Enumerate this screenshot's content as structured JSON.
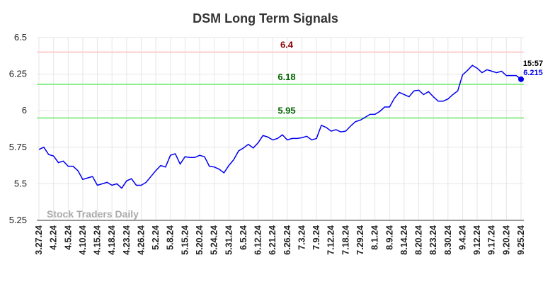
{
  "chart_data": {
    "type": "line",
    "title": "DSM Long Term Signals",
    "categories": [
      "3.27.24",
      null,
      null,
      "4.2.24",
      null,
      null,
      "4.5.24",
      null,
      null,
      "4.10.24",
      null,
      null,
      "4.15.24",
      null,
      null,
      "4.18.24",
      null,
      null,
      "4.23.24",
      null,
      null,
      "4.26.24",
      null,
      null,
      "5.2.24",
      null,
      null,
      "5.8.24",
      null,
      null,
      "5.15.24",
      null,
      null,
      "5.20.24",
      null,
      null,
      "5.24.24",
      null,
      null,
      "5.31.24",
      null,
      null,
      "6.5.24",
      null,
      null,
      "6.12.24",
      null,
      null,
      "6.21.24",
      null,
      null,
      "6.26.24",
      null,
      null,
      "7.3.24",
      null,
      null,
      "7.9.24",
      null,
      null,
      "7.12.24",
      null,
      null,
      "7.18.24",
      null,
      null,
      "7.29.24",
      null,
      null,
      "8.1.24",
      null,
      null,
      "8.9.24",
      null,
      null,
      "8.14.24",
      null,
      null,
      "8.20.24",
      null,
      null,
      "8.23.24",
      null,
      null,
      "8.30.24",
      null,
      null,
      "9.4.24",
      null,
      null,
      "9.12.24",
      null,
      null,
      "9.17.24",
      null,
      null,
      "9.20.24",
      null,
      null,
      "9.25.24"
    ],
    "series": [
      {
        "color": "#0000ee",
        "values": [
          5.735,
          5.75,
          5.7,
          5.69,
          5.645,
          5.655,
          5.62,
          5.62,
          5.59,
          5.53,
          5.54,
          5.55,
          5.49,
          5.5,
          5.51,
          5.49,
          5.5,
          5.47,
          5.52,
          5.535,
          5.49,
          5.49,
          5.51,
          5.55,
          5.59,
          5.625,
          5.615,
          5.695,
          5.705,
          5.635,
          5.685,
          5.68,
          5.68,
          5.695,
          5.685,
          5.62,
          5.615,
          5.6,
          5.575,
          5.625,
          5.665,
          5.725,
          5.745,
          5.77,
          5.745,
          5.78,
          5.83,
          5.82,
          5.8,
          5.81,
          5.835,
          5.8,
          5.81,
          5.81,
          5.815,
          5.825,
          5.8,
          5.81,
          5.9,
          5.885,
          5.86,
          5.87,
          5.855,
          5.86,
          5.895,
          5.925,
          5.935,
          5.955,
          5.975,
          5.975,
          5.995,
          6.025,
          6.025,
          6.085,
          6.125,
          6.11,
          6.095,
          6.135,
          6.14,
          6.11,
          6.13,
          6.095,
          6.065,
          6.065,
          6.08,
          6.11,
          6.135,
          6.245,
          6.275,
          6.31,
          6.29,
          6.26,
          6.28,
          6.27,
          6.26,
          6.27,
          6.24,
          6.24,
          6.24,
          6.215
        ]
      }
    ],
    "last_time": "15:57",
    "hlines": [
      {
        "value": 6.4,
        "color": "#ffcccc",
        "label_color": "#8b0000"
      },
      {
        "value": 6.18,
        "color": "#90ee90",
        "label_color": "#006400"
      },
      {
        "value": 5.95,
        "color": "#90ee90",
        "label_color": "#006400"
      }
    ],
    "watermark": "Stock Traders Daily",
    "ylim": [
      5.25,
      6.5
    ],
    "yticks": [
      5.25,
      5.5,
      5.75,
      6,
      6.25,
      6.5
    ],
    "grid": true
  }
}
